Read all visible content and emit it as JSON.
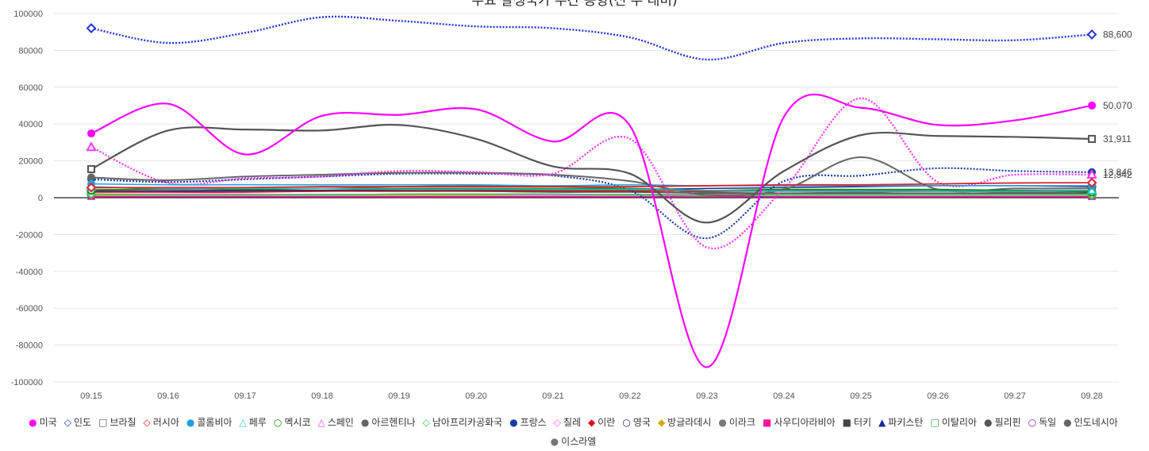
{
  "chart_data": {
    "type": "line",
    "title": "주요 발생국가 주간 동향(전 주 대비)",
    "x": [
      "09.15",
      "09.16",
      "09.17",
      "09.18",
      "09.19",
      "09.20",
      "09.21",
      "09.22",
      "09.23",
      "09.24",
      "09.25",
      "09.26",
      "09.27",
      "09.28"
    ],
    "ylim": [
      -100000,
      100000
    ],
    "yticks": [
      100000,
      80000,
      60000,
      40000,
      20000,
      0,
      -20000,
      -40000,
      -60000,
      -80000,
      -100000
    ],
    "grid": true,
    "legend_position": "bottom",
    "end_labels": [
      {
        "text": "88,600",
        "value": 88600
      },
      {
        "text": "50,070",
        "value": 50070
      },
      {
        "text": "31,911",
        "value": 31911
      },
      {
        "text": "13,846",
        "value": 13846
      },
      {
        "text": "12,542",
        "value": 12542
      }
    ],
    "series": [
      {
        "name": "미국",
        "color": "#ff00ff",
        "marker": "●",
        "dash": "",
        "width": 2.2,
        "values": [
          34900,
          51000,
          23500,
          44500,
          45000,
          48000,
          30500,
          39000,
          -92000,
          44000,
          48800,
          39500,
          42000,
          50070
        ]
      },
      {
        "name": "인도",
        "color": "#2233dd",
        "marker": "◇",
        "dash": "2,2",
        "width": 2.4,
        "values": [
          92000,
          84000,
          89500,
          98000,
          96000,
          93000,
          92000,
          87000,
          75000,
          84000,
          86500,
          86000,
          85500,
          88600
        ]
      },
      {
        "name": "브라질",
        "color": "#555555",
        "marker": "□",
        "dash": "",
        "width": 2.2,
        "values": [
          15500,
          36500,
          37000,
          36500,
          39500,
          32000,
          17000,
          13000,
          -13500,
          14500,
          34000,
          33500,
          33000,
          31911
        ]
      },
      {
        "name": "러시아",
        "color": "#e0202a",
        "marker": "◇",
        "dash": "",
        "width": 1.8,
        "values": [
          5500,
          5500,
          5500,
          6000,
          6000,
          6000,
          6000,
          6000,
          6500,
          7000,
          7000,
          7500,
          8000,
          8135
        ]
      },
      {
        "name": "콜롬비아",
        "color": "#1ea0e0",
        "marker": "●",
        "dash": "",
        "width": 1.5,
        "values": [
          7500,
          7000,
          7000,
          7000,
          7000,
          7000,
          6500,
          7000,
          6500,
          6500,
          6500,
          6500,
          6500,
          6500
        ]
      },
      {
        "name": "페루",
        "color": "#20c0c0",
        "marker": "△",
        "dash": "",
        "width": 1.5,
        "values": [
          6000,
          5000,
          5000,
          5000,
          4500,
          4500,
          4500,
          4500,
          4000,
          3500,
          3500,
          3500,
          3500,
          4000
        ]
      },
      {
        "name": "멕시코",
        "color": "#108810",
        "marker": "○",
        "dash": "",
        "width": 1.5,
        "values": [
          4000,
          5000,
          4500,
          5000,
          5000,
          5000,
          5000,
          5000,
          4000,
          4500,
          4500,
          4500,
          4000,
          3000
        ]
      },
      {
        "name": "스페인",
        "color": "#ff33ff",
        "marker": "△",
        "dash": "2,2",
        "width": 2.2,
        "values": [
          27500,
          8000,
          10500,
          11500,
          14500,
          14000,
          13000,
          32000,
          -27000,
          5000,
          54000,
          8500,
          12500,
          12542
        ]
      },
      {
        "name": "아르헨티나",
        "color": "#666666",
        "marker": "●",
        "dash": "",
        "width": 2.0,
        "values": [
          11000,
          9500,
          11500,
          12500,
          13500,
          13500,
          12500,
          9000,
          1500,
          4500,
          22000,
          4500,
          5000,
          5000
        ]
      },
      {
        "name": "남아프리카공화국",
        "color": "#33cc55",
        "marker": "◇",
        "dash": "",
        "width": 1.5,
        "values": [
          2000,
          1500,
          1500,
          1500,
          2000,
          2000,
          2000,
          1500,
          1000,
          1500,
          1500,
          1500,
          1500,
          1500
        ]
      },
      {
        "name": "프랑스",
        "color": "#1a3aa0",
        "marker": "●",
        "dash": "2,2",
        "width": 2.2,
        "values": [
          10000,
          8500,
          10000,
          11500,
          13000,
          13000,
          12000,
          4000,
          -22000,
          9000,
          12000,
          16000,
          14500,
          13846
        ]
      },
      {
        "name": "칠레",
        "color": "#ff66ff",
        "marker": "◇",
        "dash": "",
        "width": 1.5,
        "values": [
          2000,
          2000,
          2000,
          1500,
          2000,
          2000,
          1500,
          1500,
          1500,
          1500,
          1500,
          1500,
          1500,
          1500
        ]
      },
      {
        "name": "이란",
        "color": "#dd1111",
        "marker": "◆",
        "dash": "",
        "width": 1.5,
        "values": [
          3000,
          3000,
          3000,
          3500,
          3500,
          3500,
          3500,
          3500,
          3500,
          3500,
          3500,
          3500,
          3500,
          3500
        ]
      },
      {
        "name": "영국",
        "color": "#1a2b8c",
        "marker": "○",
        "dash": "",
        "width": 1.5,
        "values": [
          3500,
          3500,
          4000,
          4000,
          4000,
          4000,
          4500,
          4500,
          5000,
          5500,
          6000,
          6500,
          6500,
          6000
        ]
      },
      {
        "name": "방글라데시",
        "color": "#d4a800",
        "marker": "◆",
        "dash": "",
        "width": 1.5,
        "values": [
          1500,
          1500,
          1500,
          1500,
          1500,
          1500,
          1500,
          1500,
          1500,
          1500,
          1500,
          1500,
          1500,
          1500
        ]
      },
      {
        "name": "이라크",
        "color": "#777777",
        "marker": "●",
        "dash": "",
        "width": 1.5,
        "values": [
          4000,
          4000,
          4000,
          4000,
          4500,
          4500,
          4500,
          4500,
          4000,
          4000,
          4000,
          4000,
          3500,
          3500
        ]
      },
      {
        "name": "사우디아라비아",
        "color": "#ff1199",
        "marker": "■",
        "dash": "",
        "width": 1.5,
        "values": [
          600,
          600,
          600,
          500,
          500,
          500,
          500,
          500,
          500,
          500,
          500,
          500,
          500,
          500
        ]
      },
      {
        "name": "터키",
        "color": "#444444",
        "marker": "■",
        "dash": "",
        "width": 1.5,
        "values": [
          1700,
          1700,
          1700,
          1700,
          1700,
          1700,
          1700,
          1700,
          1700,
          1700,
          1700,
          1700,
          1700,
          1700
        ]
      },
      {
        "name": "파키스탄",
        "color": "#1a2b9c",
        "marker": "▲",
        "dash": "",
        "width": 1.5,
        "values": [
          600,
          600,
          600,
          600,
          600,
          600,
          600,
          600,
          600,
          600,
          600,
          600,
          600,
          600
        ]
      },
      {
        "name": "이탈리아",
        "color": "#22aa44",
        "marker": "□",
        "dash": "",
        "width": 1.5,
        "values": [
          1500,
          1500,
          1500,
          1500,
          1500,
          1500,
          1500,
          1500,
          1500,
          1500,
          1500,
          1500,
          1500,
          1500
        ]
      },
      {
        "name": "필리핀",
        "color": "#555555",
        "marker": "●",
        "dash": "",
        "width": 1.5,
        "values": [
          3500,
          3500,
          3500,
          3500,
          3500,
          3500,
          3000,
          3000,
          2500,
          2500,
          2500,
          2500,
          2500,
          2500
        ]
      },
      {
        "name": "독일",
        "color": "#8822cc",
        "marker": "○",
        "dash": "",
        "width": 1.5,
        "values": [
          1500,
          1500,
          1500,
          1500,
          1500,
          1500,
          1500,
          1500,
          1500,
          1500,
          1500,
          1500,
          1500,
          1500
        ]
      },
      {
        "name": "인도네시아",
        "color": "#666666",
        "marker": "●",
        "dash": "",
        "width": 1.5,
        "values": [
          3500,
          3500,
          3500,
          3500,
          4000,
          4000,
          4000,
          4000,
          4000,
          4000,
          4000,
          4000,
          4000,
          4000
        ]
      },
      {
        "name": "이스라엘",
        "color": "#777777",
        "marker": "●",
        "dash": "",
        "width": 1.5,
        "values": [
          4500,
          4500,
          5000,
          5000,
          6000,
          6500,
          6000,
          5000,
          3000,
          2500,
          3000,
          3500,
          3000,
          2500
        ]
      }
    ]
  }
}
